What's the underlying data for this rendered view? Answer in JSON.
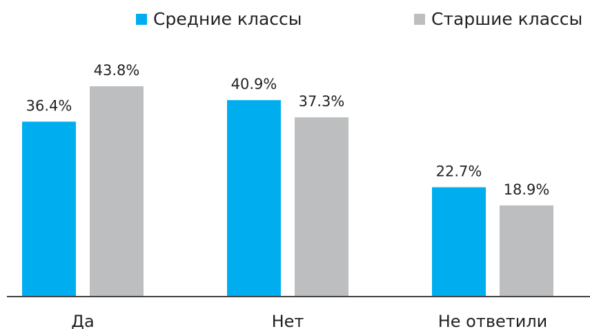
{
  "chart_data": {
    "type": "bar",
    "categories": [
      "Да",
      "Нет",
      "Не ответили"
    ],
    "series": [
      {
        "name": "Средние классы",
        "color": "#00aeef",
        "values": [
          36.4,
          40.9,
          22.7
        ],
        "value_labels": [
          "36.4%",
          "40.9%",
          "22.7%"
        ]
      },
      {
        "name": "Старшие классы",
        "color": "#bcbec0",
        "values": [
          43.8,
          37.3,
          18.9
        ],
        "value_labels": [
          "43.8%",
          "37.3%",
          "18.9%"
        ]
      }
    ],
    "ylim": [
      0,
      50
    ]
  }
}
